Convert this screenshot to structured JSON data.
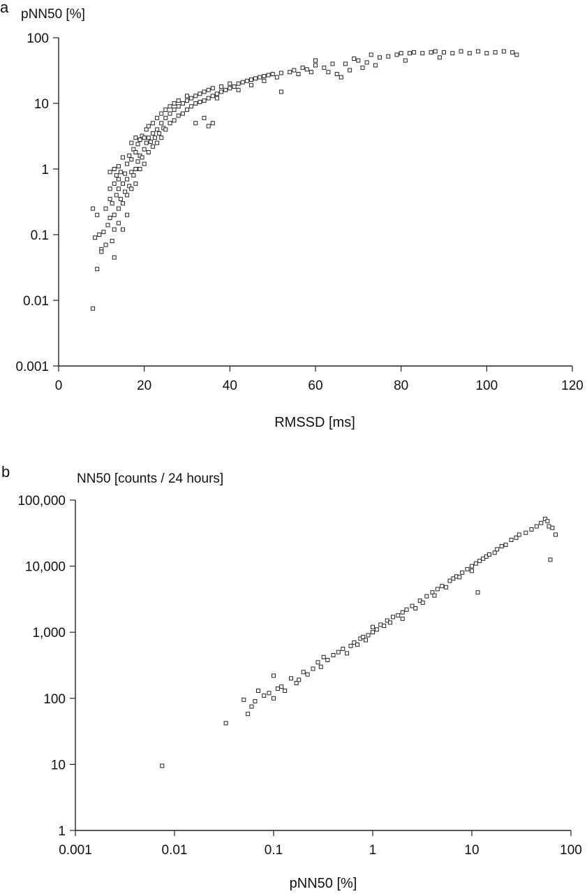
{
  "chart_data": [
    {
      "type": "scatter",
      "panel_label": "a",
      "title": "",
      "xlabel": "RMSSD [ms]",
      "ylabel": "pNN50 [%]",
      "xlim": [
        0,
        120
      ],
      "ylim": [
        0.001,
        100
      ],
      "xscale": "linear",
      "yscale": "log",
      "grid": false,
      "legend": "none",
      "xticks": [
        0,
        20,
        40,
        60,
        80,
        100,
        120
      ],
      "xtick_labels": [
        "0",
        "20",
        "40",
        "60",
        "80",
        "100",
        "120"
      ],
      "yticks": [
        0.001,
        0.01,
        0.1,
        1,
        10,
        100
      ],
      "ytick_labels": [
        "0.001",
        "0.01",
        "0.1",
        "1",
        "10",
        "100"
      ],
      "marker": "open-square",
      "points": [
        [
          8,
          0.0075
        ],
        [
          8,
          0.25
        ],
        [
          8.5,
          0.09
        ],
        [
          9,
          0.03
        ],
        [
          9,
          0.2
        ],
        [
          9.5,
          0.1
        ],
        [
          10,
          0.06
        ],
        [
          10,
          0.055
        ],
        [
          10.5,
          0.11
        ],
        [
          11,
          0.25
        ],
        [
          11,
          0.07
        ],
        [
          11.5,
          0.14
        ],
        [
          12,
          0.18
        ],
        [
          12,
          0.35
        ],
        [
          12,
          0.5
        ],
        [
          12,
          0.9
        ],
        [
          12.5,
          0.08
        ],
        [
          12.5,
          0.3
        ],
        [
          13,
          0.045
        ],
        [
          13,
          0.12
        ],
        [
          13,
          0.2
        ],
        [
          13,
          0.6
        ],
        [
          13,
          1.0
        ],
        [
          13.5,
          0.4
        ],
        [
          13.5,
          0.8
        ],
        [
          14,
          0.15
        ],
        [
          14,
          0.25
        ],
        [
          14,
          0.5
        ],
        [
          14,
          0.7
        ],
        [
          14,
          1.1
        ],
        [
          14.5,
          0.35
        ],
        [
          14.5,
          0.9
        ],
        [
          15,
          0.12
        ],
        [
          15,
          0.3
        ],
        [
          15,
          0.6
        ],
        [
          15,
          1.5
        ],
        [
          15.5,
          0.45
        ],
        [
          15.5,
          0.85
        ],
        [
          16,
          0.2
        ],
        [
          16,
          0.4
        ],
        [
          16,
          0.7
        ],
        [
          16,
          1.2
        ],
        [
          16.5,
          0.55
        ],
        [
          16.5,
          1.6
        ],
        [
          17,
          0.5
        ],
        [
          17,
          0.9
        ],
        [
          17,
          1.4
        ],
        [
          17,
          2.5
        ],
        [
          17.5,
          0.8
        ],
        [
          17.5,
          2.0
        ],
        [
          18,
          0.6
        ],
        [
          18,
          1.0
        ],
        [
          18,
          1.8
        ],
        [
          18,
          3.0
        ],
        [
          18.5,
          1.3
        ],
        [
          18.5,
          2.4
        ],
        [
          19,
          1.0
        ],
        [
          19,
          1.6
        ],
        [
          19,
          2.8
        ],
        [
          19.5,
          1.5
        ],
        [
          19.5,
          3.2
        ],
        [
          20,
          1.2
        ],
        [
          20,
          2.0
        ],
        [
          20,
          3.0
        ],
        [
          20.5,
          2.5
        ],
        [
          20.5,
          4.0
        ],
        [
          21,
          1.8
        ],
        [
          21,
          3.0
        ],
        [
          21,
          4.5
        ],
        [
          21.5,
          2.6
        ],
        [
          22,
          2.2
        ],
        [
          22,
          3.5
        ],
        [
          22,
          5.0
        ],
        [
          22.5,
          3.0
        ],
        [
          23,
          2.5
        ],
        [
          23,
          4.0
        ],
        [
          23,
          6.0
        ],
        [
          23.5,
          3.5
        ],
        [
          24,
          3.0
        ],
        [
          24,
          5.0
        ],
        [
          24,
          7.0
        ],
        [
          24.5,
          4.2
        ],
        [
          25,
          4.0
        ],
        [
          25,
          6.0
        ],
        [
          25,
          8.0
        ],
        [
          26,
          5.0
        ],
        [
          26,
          7.0
        ],
        [
          26,
          9.0
        ],
        [
          27,
          5.5
        ],
        [
          27,
          8.0
        ],
        [
          27,
          10.0
        ],
        [
          28,
          6.5
        ],
        [
          28,
          9.0
        ],
        [
          28,
          11.0
        ],
        [
          29,
          7.0
        ],
        [
          29,
          10.0
        ],
        [
          30,
          8.0
        ],
        [
          30,
          11.0
        ],
        [
          30,
          13.0
        ],
        [
          31,
          9.0
        ],
        [
          31,
          12.0
        ],
        [
          32,
          10.0
        ],
        [
          32,
          13.0
        ],
        [
          32,
          5.0
        ],
        [
          33,
          10.5
        ],
        [
          33,
          14.0
        ],
        [
          34,
          11.0
        ],
        [
          34,
          15.0
        ],
        [
          34,
          6.0
        ],
        [
          35,
          12.0
        ],
        [
          35,
          16.0
        ],
        [
          35,
          4.5
        ],
        [
          36,
          13.0
        ],
        [
          36,
          17.0
        ],
        [
          36,
          5.0
        ],
        [
          37,
          14.0
        ],
        [
          37,
          12.0
        ],
        [
          38,
          15.0
        ],
        [
          38,
          18.0
        ],
        [
          39,
          16.0
        ],
        [
          40,
          17.0
        ],
        [
          40,
          20.0
        ],
        [
          41,
          18.0
        ],
        [
          42,
          20.0
        ],
        [
          42,
          16.0
        ],
        [
          43,
          21.0
        ],
        [
          44,
          22.0
        ],
        [
          45,
          23.0
        ],
        [
          45,
          19.0
        ],
        [
          46,
          24.0
        ],
        [
          47,
          25.0
        ],
        [
          48,
          26.0
        ],
        [
          48,
          22.0
        ],
        [
          49,
          27.0
        ],
        [
          50,
          28.0
        ],
        [
          51,
          25.0
        ],
        [
          52,
          15.0
        ],
        [
          52,
          29.0
        ],
        [
          54,
          30.0
        ],
        [
          55,
          32.0
        ],
        [
          56,
          28.0
        ],
        [
          57,
          35.0
        ],
        [
          58,
          33.0
        ],
        [
          59,
          30.0
        ],
        [
          60,
          38.0
        ],
        [
          60,
          45.0
        ],
        [
          62,
          35.0
        ],
        [
          63,
          30.0
        ],
        [
          64,
          40.0
        ],
        [
          65,
          28.0
        ],
        [
          66,
          25.0
        ],
        [
          67,
          40.0
        ],
        [
          68,
          32.0
        ],
        [
          69,
          48.0
        ],
        [
          70,
          45.0
        ],
        [
          71,
          35.0
        ],
        [
          72,
          42.0
        ],
        [
          73,
          55.0
        ],
        [
          74,
          38.0
        ],
        [
          75,
          50.0
        ],
        [
          77,
          52.0
        ],
        [
          79,
          55.0
        ],
        [
          80,
          58.0
        ],
        [
          81,
          45.0
        ],
        [
          82,
          58.0
        ],
        [
          83,
          60.0
        ],
        [
          85,
          58.0
        ],
        [
          87,
          60.0
        ],
        [
          88,
          62.0
        ],
        [
          89,
          50.0
        ],
        [
          90,
          60.0
        ],
        [
          92,
          58.0
        ],
        [
          94,
          62.0
        ],
        [
          96,
          58.0
        ],
        [
          98,
          62.0
        ],
        [
          100,
          58.0
        ],
        [
          102,
          60.0
        ],
        [
          104,
          62.0
        ],
        [
          106,
          60.0
        ],
        [
          107,
          55.0
        ]
      ]
    },
    {
      "type": "scatter",
      "panel_label": "b",
      "title": "",
      "xlabel": "pNN50 [%]",
      "ylabel": "NN50 [counts / 24 hours]",
      "xlim": [
        0.001,
        100
      ],
      "ylim": [
        1,
        100000
      ],
      "xscale": "log",
      "yscale": "log",
      "grid": false,
      "legend": "none",
      "xticks": [
        0.001,
        0.01,
        0.1,
        1,
        10,
        100
      ],
      "xtick_labels": [
        "0.001",
        "0.01",
        "0.1",
        "1",
        "10",
        "100"
      ],
      "yticks": [
        1,
        10,
        100,
        1000,
        10000,
        100000
      ],
      "ytick_labels": [
        "1",
        "10",
        "100",
        "1,000",
        "10,000",
        "100,000"
      ],
      "marker": "open-square",
      "points": [
        [
          0.0075,
          9.5
        ],
        [
          0.033,
          42
        ],
        [
          0.05,
          95
        ],
        [
          0.055,
          58
        ],
        [
          0.06,
          75
        ],
        [
          0.065,
          90
        ],
        [
          0.07,
          130
        ],
        [
          0.08,
          110
        ],
        [
          0.09,
          120
        ],
        [
          0.1,
          100
        ],
        [
          0.1,
          220
        ],
        [
          0.11,
          140
        ],
        [
          0.12,
          150
        ],
        [
          0.13,
          130
        ],
        [
          0.15,
          200
        ],
        [
          0.17,
          170
        ],
        [
          0.18,
          190
        ],
        [
          0.2,
          250
        ],
        [
          0.22,
          230
        ],
        [
          0.25,
          280
        ],
        [
          0.28,
          350
        ],
        [
          0.3,
          300
        ],
        [
          0.32,
          420
        ],
        [
          0.35,
          380
        ],
        [
          0.4,
          450
        ],
        [
          0.45,
          500
        ],
        [
          0.5,
          560
        ],
        [
          0.55,
          480
        ],
        [
          0.6,
          620
        ],
        [
          0.65,
          700
        ],
        [
          0.7,
          650
        ],
        [
          0.75,
          800
        ],
        [
          0.8,
          850
        ],
        [
          0.85,
          760
        ],
        [
          0.9,
          900
        ],
        [
          1.0,
          1000
        ],
        [
          1.0,
          1200
        ],
        [
          1.1,
          1100
        ],
        [
          1.2,
          1300
        ],
        [
          1.3,
          1250
        ],
        [
          1.4,
          1500
        ],
        [
          1.5,
          1400
        ],
        [
          1.6,
          1700
        ],
        [
          1.8,
          1800
        ],
        [
          2.0,
          2000
        ],
        [
          2.0,
          1600
        ],
        [
          2.2,
          2200
        ],
        [
          2.5,
          2500
        ],
        [
          2.7,
          2300
        ],
        [
          3.0,
          3000
        ],
        [
          3.2,
          2800
        ],
        [
          3.5,
          3500
        ],
        [
          4.0,
          4000
        ],
        [
          4.2,
          3600
        ],
        [
          4.5,
          4500
        ],
        [
          5.0,
          5000
        ],
        [
          5.5,
          4800
        ],
        [
          6.0,
          6000
        ],
        [
          6.5,
          6500
        ],
        [
          7.0,
          7000
        ],
        [
          7.5,
          6800
        ],
        [
          8.0,
          8000
        ],
        [
          9.0,
          9000
        ],
        [
          10.0,
          10000
        ],
        [
          10.0,
          8500
        ],
        [
          11.0,
          11000
        ],
        [
          11.5,
          4000
        ],
        [
          12.0,
          12000
        ],
        [
          13.0,
          13000
        ],
        [
          14.0,
          14000
        ],
        [
          15.0,
          15000
        ],
        [
          17.0,
          16000
        ],
        [
          18.0,
          18000
        ],
        [
          20.0,
          20000
        ],
        [
          22.0,
          21000
        ],
        [
          25.0,
          25000
        ],
        [
          28.0,
          27000
        ],
        [
          30.0,
          30000
        ],
        [
          35.0,
          32000
        ],
        [
          40.0,
          36000
        ],
        [
          45.0,
          40000
        ],
        [
          50.0,
          45000
        ],
        [
          55.0,
          52000
        ],
        [
          58.0,
          48000
        ],
        [
          60.0,
          40000
        ],
        [
          62.0,
          12500
        ],
        [
          65.0,
          38000
        ],
        [
          70.0,
          30000
        ]
      ]
    }
  ]
}
